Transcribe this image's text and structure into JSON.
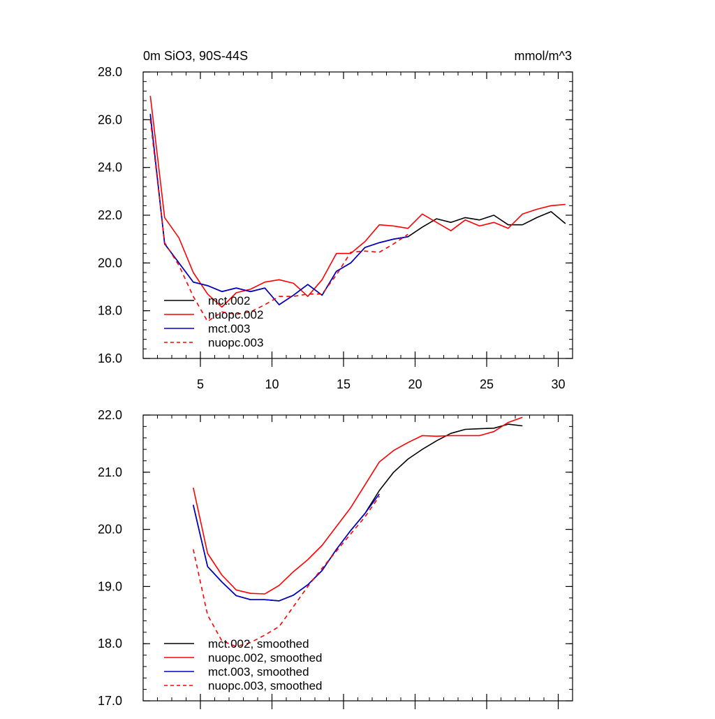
{
  "chart_data": [
    {
      "type": "line",
      "title_left": "0m SiO3, 90S-44S",
      "title_right": "mmol/m^3",
      "xlim": [
        1,
        31
      ],
      "ylim": [
        16,
        28
      ],
      "xticks": [
        5,
        10,
        15,
        20,
        25,
        30
      ],
      "yticks": [
        16,
        18,
        20,
        22,
        24,
        26,
        28
      ],
      "ytick_labels": [
        "16.0",
        "18.0",
        "20.0",
        "22.0",
        "24.0",
        "26.0",
        "28.0"
      ],
      "legend": [
        "mct.002",
        "nuopc.002",
        "mct.003",
        "nuopc.003"
      ],
      "series": [
        {
          "name": "mct.002",
          "color": "#000000",
          "dash": "",
          "x": [
            1.5,
            2.5,
            3.5,
            4.5,
            5.5,
            6.5,
            7.5,
            8.5,
            9.5,
            10.5,
            11.5,
            12.5,
            13.5,
            14.5,
            15.5,
            16.5,
            17.5,
            18.5,
            19.5,
            20.5,
            21.5,
            22.5,
            23.5,
            24.5,
            25.5,
            26.5,
            27.5,
            28.5,
            29.5,
            30.5
          ],
          "values": [
            26.2,
            20.8,
            20.0,
            19.2,
            19.05,
            18.8,
            18.95,
            18.8,
            18.95,
            18.25,
            18.65,
            19.1,
            18.65,
            19.65,
            20.0,
            20.65,
            20.85,
            21.0,
            21.1,
            21.5,
            21.85,
            21.7,
            21.9,
            21.8,
            22.0,
            21.6,
            21.6,
            21.9,
            22.15,
            21.65
          ]
        },
        {
          "name": "nuopc.002",
          "color": "#ff0000",
          "dash": "",
          "x": [
            1.5,
            2.5,
            3.5,
            4.5,
            5.5,
            6.5,
            7.5,
            8.5,
            9.5,
            10.5,
            11.5,
            12.5,
            13.5,
            14.5,
            15.5,
            16.5,
            17.5,
            18.5,
            19.5,
            20.5,
            21.5,
            22.5,
            23.5,
            24.5,
            25.5,
            26.5,
            27.5,
            28.5,
            29.5,
            30.5
          ],
          "values": [
            27.0,
            21.9,
            21.05,
            19.6,
            18.7,
            18.15,
            18.75,
            18.9,
            19.2,
            19.3,
            19.15,
            18.6,
            19.3,
            20.4,
            20.4,
            20.9,
            21.6,
            21.55,
            21.45,
            22.05,
            21.7,
            21.35,
            21.8,
            21.55,
            21.7,
            21.45,
            22.05,
            22.25,
            22.4,
            22.45
          ]
        },
        {
          "name": "mct.003",
          "color": "#0000cc",
          "dash": "",
          "x": [
            1.5,
            2.5,
            3.5,
            4.5,
            5.5,
            6.5,
            7.5,
            8.5,
            9.5,
            10.5,
            11.5,
            12.5,
            13.5,
            14.5,
            15.5,
            16.5,
            17.5,
            18.5,
            19.5
          ],
          "values": [
            26.25,
            20.8,
            20.0,
            19.2,
            19.05,
            18.8,
            18.95,
            18.8,
            18.95,
            18.25,
            18.65,
            19.1,
            18.65,
            19.65,
            20.0,
            20.65,
            20.85,
            21.0,
            21.1
          ]
        },
        {
          "name": "nuopc.003",
          "color": "#ff0000",
          "dash": "6,5",
          "x": [
            1.5,
            2.5,
            3.5,
            4.5,
            5.5,
            6.5,
            7.5,
            8.5,
            9.5,
            10.5,
            11.5,
            12.5,
            13.5,
            14.5,
            15.5,
            16.5,
            17.5,
            18.5,
            19.5
          ],
          "values": [
            26.0,
            20.85,
            19.9,
            18.6,
            17.55,
            17.95,
            17.85,
            17.95,
            18.25,
            18.6,
            18.6,
            18.7,
            18.7,
            19.5,
            20.45,
            20.5,
            20.45,
            20.8,
            21.2
          ]
        }
      ]
    },
    {
      "type": "line",
      "xlim": [
        1,
        31
      ],
      "ylim": [
        17,
        22
      ],
      "xticks": [
        5,
        10,
        15,
        20,
        25,
        30
      ],
      "yticks": [
        17,
        18,
        19,
        20,
        21,
        22
      ],
      "ytick_labels": [
        "17.0",
        "18.0",
        "19.0",
        "20.0",
        "21.0",
        "22.0"
      ],
      "legend": [
        "mct.002, smoothed",
        "nuopc.002, smoothed",
        "mct.003, smoothed",
        "nuopc.003, smoothed"
      ],
      "series": [
        {
          "name": "mct.002, smoothed",
          "color": "#000000",
          "dash": "",
          "x": [
            4.5,
            5.5,
            6.5,
            7.5,
            8.5,
            9.5,
            10.5,
            11.5,
            12.5,
            13.5,
            14.5,
            15.5,
            16.5,
            17.5,
            18.5,
            19.5,
            20.5,
            21.5,
            22.5,
            23.5,
            24.5,
            25.5,
            26.5,
            27.5
          ],
          "values": [
            20.42,
            19.35,
            19.08,
            18.84,
            18.77,
            18.77,
            18.75,
            18.85,
            19.03,
            19.28,
            19.65,
            19.98,
            20.28,
            20.68,
            21.0,
            21.23,
            21.4,
            21.55,
            21.68,
            21.75,
            21.76,
            21.77,
            21.84,
            21.81
          ]
        },
        {
          "name": "nuopc.002, smoothed",
          "color": "#ff0000",
          "dash": "",
          "x": [
            4.5,
            5.5,
            6.5,
            7.5,
            8.5,
            9.5,
            10.5,
            11.5,
            12.5,
            13.5,
            14.5,
            15.5,
            16.5,
            17.5,
            18.5,
            19.5,
            20.5,
            21.5,
            22.5,
            23.5,
            24.5,
            25.5,
            26.5,
            27.5
          ],
          "values": [
            20.73,
            19.58,
            19.2,
            18.94,
            18.88,
            18.87,
            19.02,
            19.26,
            19.47,
            19.72,
            20.05,
            20.38,
            20.78,
            21.18,
            21.38,
            21.52,
            21.64,
            21.63,
            21.64,
            21.64,
            21.64,
            21.71,
            21.87,
            21.96
          ]
        },
        {
          "name": "mct.003, smoothed",
          "color": "#0000cc",
          "dash": "",
          "x": [
            4.5,
            5.5,
            6.5,
            7.5,
            8.5,
            9.5,
            10.5,
            11.5,
            12.5,
            13.5,
            14.5,
            15.5,
            16.5,
            17.5
          ],
          "values": [
            20.43,
            19.35,
            19.08,
            18.84,
            18.77,
            18.77,
            18.75,
            18.85,
            19.03,
            19.28,
            19.65,
            19.98,
            20.28,
            20.62
          ]
        },
        {
          "name": "nuopc.003, smoothed",
          "color": "#ff0000",
          "dash": "6,5",
          "x": [
            4.5,
            5.5,
            6.5,
            7.5,
            8.5,
            9.5,
            10.5,
            11.5,
            12.5,
            13.5,
            14.5,
            15.5,
            16.5,
            17.5
          ],
          "values": [
            19.65,
            18.5,
            18.05,
            17.95,
            18.02,
            18.15,
            18.3,
            18.65,
            19.0,
            19.32,
            19.62,
            19.92,
            20.22,
            20.58
          ]
        }
      ]
    }
  ]
}
